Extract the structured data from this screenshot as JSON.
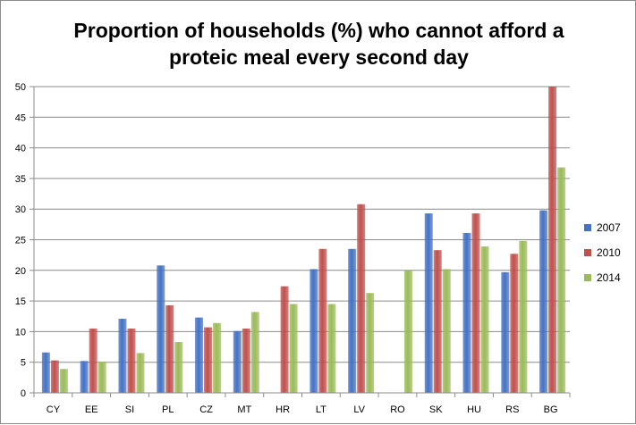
{
  "chart_data": {
    "type": "bar",
    "title_lines": [
      "Proportion of households (%) who cannot afford a",
      "proteic meal every second day"
    ],
    "categories": [
      "CY",
      "EE",
      "SI",
      "PL",
      "CZ",
      "MT",
      "HR",
      "LT",
      "LV",
      "RO",
      "SK",
      "HU",
      "RS",
      "BG"
    ],
    "series": [
      {
        "name": "2007",
        "color": "#4472C4",
        "values": [
          6.6,
          5.2,
          12.1,
          20.8,
          12.3,
          10.1,
          null,
          20.2,
          23.5,
          null,
          29.3,
          26.1,
          19.7,
          29.8
        ]
      },
      {
        "name": "2010",
        "color": "#C0504D",
        "values": [
          5.3,
          10.5,
          10.5,
          14.3,
          10.7,
          10.5,
          17.4,
          23.5,
          30.8,
          null,
          23.3,
          29.3,
          22.7,
          50.0
        ]
      },
      {
        "name": "2014",
        "color": "#9BBB59",
        "values": [
          3.9,
          5.1,
          6.5,
          8.3,
          11.4,
          13.2,
          14.5,
          14.5,
          16.3,
          20.0,
          20.2,
          23.9,
          24.8,
          36.8
        ]
      }
    ],
    "yticks": [
      "0",
      "5",
      "10",
      "15",
      "20",
      "25",
      "30",
      "35",
      "40",
      "45",
      "50"
    ],
    "ylim": [
      0,
      50
    ],
    "grid": true,
    "legend_position": "right"
  }
}
